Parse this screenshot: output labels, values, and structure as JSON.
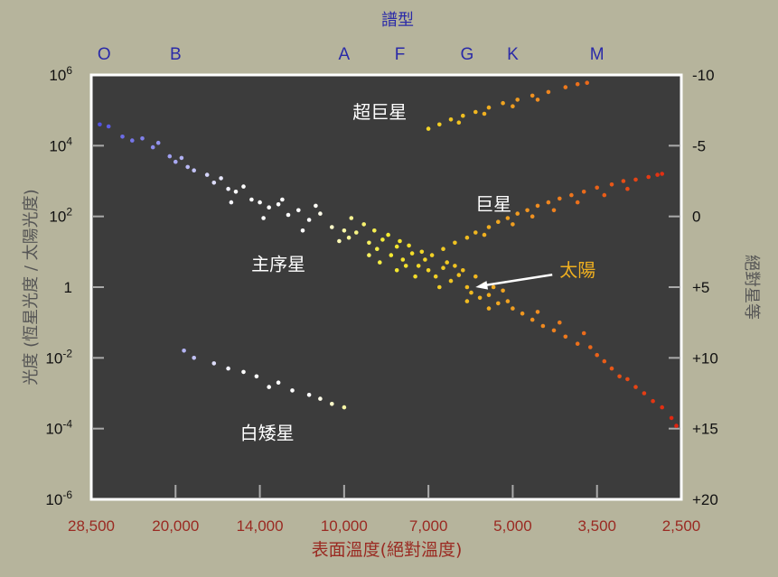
{
  "chart_data": {
    "type": "scatter",
    "title": "",
    "top_axis_title": "譜型",
    "spectral_classes": [
      {
        "label": "O",
        "temperature": 27000
      },
      {
        "label": "B",
        "temperature": 20000
      },
      {
        "label": "A",
        "temperature": 10000
      },
      {
        "label": "F",
        "temperature": 7900
      },
      {
        "label": "G",
        "temperature": 6000
      },
      {
        "label": "K",
        "temperature": 5000
      },
      {
        "label": "M",
        "temperature": 3500
      }
    ],
    "xlabel": "表面溫度(絕對溫度)",
    "x_ticks": [
      "28,500",
      "20,000",
      "14,000",
      "10,000",
      "7,000",
      "5,000",
      "3,500",
      "2,500"
    ],
    "x_tick_values": [
      28500,
      20000,
      14000,
      10000,
      7000,
      5000,
      3500,
      2500
    ],
    "x_reversed": true,
    "ylabel": "光度 (恆星光度 / 太陽光度)",
    "y_scale": "log",
    "ylim": [
      1e-06,
      1000000.0
    ],
    "y_ticks": [
      {
        "value": 1000000.0,
        "base": "10",
        "exp": "6"
      },
      {
        "value": 10000.0,
        "base": "10",
        "exp": "4"
      },
      {
        "value": 100.0,
        "base": "10",
        "exp": "2"
      },
      {
        "value": 1,
        "base": "1",
        "exp": ""
      },
      {
        "value": 0.01,
        "base": "10",
        "exp": "-2"
      },
      {
        "value": 0.0001,
        "base": "10",
        "exp": "-4"
      },
      {
        "value": 1e-06,
        "base": "10",
        "exp": "-6"
      }
    ],
    "y2label": "絕對星等",
    "y2_ticks": [
      "-10",
      "-5",
      "0",
      "+5",
      "+10",
      "+15",
      "+20"
    ],
    "annotations": [
      {
        "text": "超巨星",
        "temperature": 8600,
        "luminosity": 60000
      },
      {
        "text": "巨星",
        "temperature": 5400,
        "luminosity": 150
      },
      {
        "text": "主序星",
        "temperature": 13000,
        "luminosity": 3
      },
      {
        "text": "白矮星",
        "temperature": 13600,
        "luminosity": 5e-05
      },
      {
        "text": "太陽",
        "temperature": 3800,
        "luminosity": 2,
        "color": "#f0b020",
        "arrow_to": {
          "temperature": 5800,
          "luminosity": 1
        }
      }
    ],
    "colors": {
      "background": "#b6b49c",
      "plot_background": "#3c3c3c",
      "scale": [
        "#4a4ae0",
        "#9a9af0",
        "#ffffff",
        "#ffffff",
        "#f4ec30",
        "#f0c020",
        "#f09020",
        "#e85a18",
        "#e02010"
      ]
    },
    "series": [
      {
        "group": "main-sequence",
        "points": [
          [
            27500,
            40000
          ],
          [
            26500,
            35000
          ],
          [
            25000,
            18000
          ],
          [
            24000,
            14000
          ],
          [
            23000,
            16000
          ],
          [
            22000,
            9000
          ],
          [
            21500,
            12000
          ],
          [
            20500,
            5000
          ],
          [
            20000,
            3500
          ],
          [
            19500,
            4500
          ],
          [
            19000,
            2500
          ],
          [
            18500,
            2000
          ],
          [
            17500,
            1500
          ],
          [
            17000,
            900
          ],
          [
            16500,
            1200
          ],
          [
            16000,
            600
          ],
          [
            15500,
            500
          ],
          [
            15000,
            700
          ],
          [
            14500,
            300
          ],
          [
            14000,
            250
          ],
          [
            13500,
            180
          ],
          [
            13000,
            220
          ],
          [
            12500,
            110
          ],
          [
            12000,
            150
          ],
          [
            11500,
            80
          ],
          [
            11000,
            120
          ],
          [
            10500,
            50
          ],
          [
            10000,
            40
          ],
          [
            9800,
            25
          ],
          [
            9500,
            35
          ],
          [
            9000,
            18
          ],
          [
            8700,
            12
          ],
          [
            8500,
            22
          ],
          [
            8200,
            8
          ],
          [
            8000,
            14
          ],
          [
            7800,
            6
          ],
          [
            7500,
            9
          ],
          [
            7300,
            4
          ],
          [
            7100,
            6
          ],
          [
            7000,
            3
          ],
          [
            6800,
            2
          ],
          [
            6600,
            3.5
          ],
          [
            6400,
            1.5
          ],
          [
            6200,
            2.2
          ],
          [
            6000,
            1
          ],
          [
            5900,
            0.7
          ],
          [
            5700,
            0.5
          ],
          [
            5500,
            0.6
          ],
          [
            5300,
            0.35
          ],
          [
            5100,
            0.4
          ],
          [
            5000,
            0.25
          ],
          [
            4800,
            0.18
          ],
          [
            4600,
            0.12
          ],
          [
            4400,
            0.08
          ],
          [
            4200,
            0.06
          ],
          [
            4000,
            0.04
          ],
          [
            3800,
            0.025
          ],
          [
            3600,
            0.02
          ],
          [
            3500,
            0.012
          ],
          [
            3400,
            0.008
          ],
          [
            3300,
            0.005
          ],
          [
            3200,
            0.003
          ],
          [
            3100,
            0.0025
          ],
          [
            3000,
            0.0015
          ],
          [
            2900,
            0.001
          ],
          [
            2800,
            0.0006
          ],
          [
            2700,
            0.0004
          ],
          [
            2600,
            0.0002
          ],
          [
            2550,
            0.00012
          ],
          [
            9200,
            60
          ],
          [
            8800,
            40
          ],
          [
            8300,
            30
          ],
          [
            7900,
            20
          ],
          [
            7600,
            15
          ],
          [
            7200,
            10
          ],
          [
            6900,
            8
          ],
          [
            6500,
            5
          ],
          [
            6300,
            4
          ],
          [
            6100,
            3
          ],
          [
            5800,
            2
          ],
          [
            5600,
            1.2
          ],
          [
            5400,
            1
          ],
          [
            5200,
            0.8
          ],
          [
            9700,
            90
          ],
          [
            11200,
            200
          ],
          [
            12800,
            300
          ],
          [
            8600,
            5
          ],
          [
            8000,
            3
          ],
          [
            7400,
            2
          ],
          [
            6700,
            1
          ],
          [
            6000,
            0.4
          ],
          [
            5500,
            0.25
          ],
          [
            4500,
            0.2
          ],
          [
            4100,
            0.1
          ],
          [
            3700,
            0.05
          ],
          [
            10200,
            20
          ],
          [
            9000,
            8
          ],
          [
            7700,
            4
          ],
          [
            11800,
            40
          ],
          [
            13800,
            90
          ],
          [
            15800,
            250
          ]
        ]
      },
      {
        "group": "giants",
        "points": [
          [
            6600,
            12
          ],
          [
            6300,
            18
          ],
          [
            6000,
            25
          ],
          [
            5800,
            35
          ],
          [
            5500,
            50
          ],
          [
            5300,
            70
          ],
          [
            5100,
            90
          ],
          [
            4900,
            120
          ],
          [
            4700,
            150
          ],
          [
            4500,
            200
          ],
          [
            4300,
            250
          ],
          [
            4100,
            320
          ],
          [
            3900,
            400
          ],
          [
            3700,
            500
          ],
          [
            3500,
            650
          ],
          [
            3300,
            800
          ],
          [
            3150,
            1000
          ],
          [
            3000,
            1100
          ],
          [
            2850,
            1300
          ],
          [
            2750,
            1500
          ],
          [
            2700,
            1600
          ],
          [
            5600,
            30
          ],
          [
            5000,
            60
          ],
          [
            4600,
            100
          ],
          [
            4200,
            150
          ],
          [
            3800,
            250
          ],
          [
            3400,
            400
          ],
          [
            3100,
            600
          ]
        ]
      },
      {
        "group": "supergiants",
        "points": [
          [
            7000,
            30000
          ],
          [
            6700,
            40000
          ],
          [
            6400,
            55000
          ],
          [
            6100,
            70000
          ],
          [
            5800,
            90000
          ],
          [
            5500,
            120000
          ],
          [
            5200,
            160000
          ],
          [
            4900,
            200000
          ],
          [
            4600,
            260000
          ],
          [
            4300,
            330000
          ],
          [
            4000,
            450000
          ],
          [
            3800,
            550000
          ],
          [
            3650,
            600000
          ],
          [
            6200,
            45000
          ],
          [
            5600,
            80000
          ],
          [
            5000,
            130000
          ],
          [
            4500,
            200000
          ]
        ]
      },
      {
        "group": "white-dwarfs",
        "points": [
          [
            19300,
            0.016
          ],
          [
            18500,
            0.01
          ],
          [
            17000,
            0.007
          ],
          [
            16000,
            0.005
          ],
          [
            15000,
            0.004
          ],
          [
            14200,
            0.003
          ],
          [
            13500,
            0.0015
          ],
          [
            13000,
            0.002
          ],
          [
            12300,
            0.0012
          ],
          [
            11500,
            0.0009
          ],
          [
            11000,
            0.0007
          ],
          [
            10500,
            0.0005
          ],
          [
            10000,
            0.0004
          ]
        ]
      }
    ]
  }
}
